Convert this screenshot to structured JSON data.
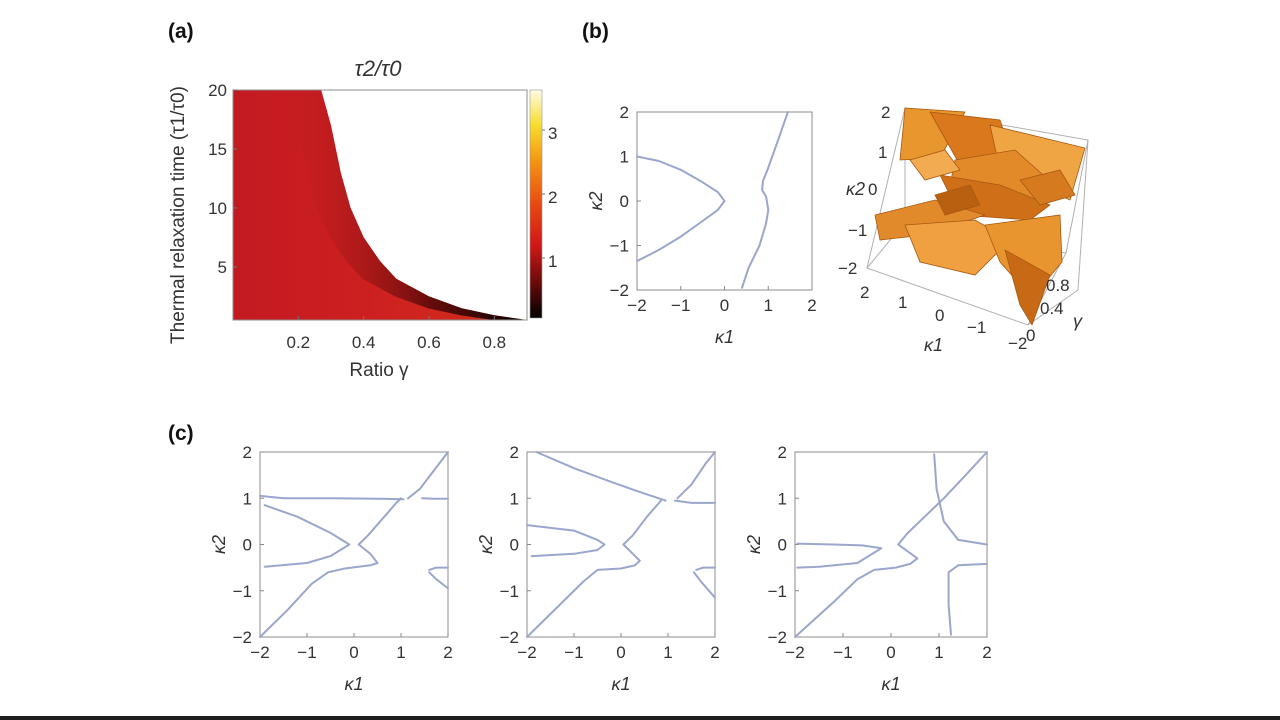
{
  "panels": {
    "a": {
      "label": "(a)",
      "title": "τ2/τ0",
      "ylabel": "Thermal relaxation time (τ1/τ0)",
      "xlabel": "Ratio γ",
      "colorbar_ticks": [
        "3",
        "2",
        "1"
      ]
    },
    "b": {
      "label": "(b)",
      "xlabel": "κ1",
      "ylabel": "κ2",
      "surface_axes": {
        "kappa2_ticks": [
          "2",
          "1",
          "0",
          "−1",
          "−2"
        ],
        "kappa1_ticks": [
          "2",
          "1",
          "0",
          "−1",
          "−2"
        ],
        "gamma_ticks": [
          "0.8",
          "0.4",
          "0"
        ],
        "kappa2_label": "κ2",
        "kappa1_label": "κ1",
        "gamma_label": "γ"
      }
    },
    "c": {
      "label": "(c)",
      "xlabel": "κ1",
      "ylabel": "κ2"
    }
  },
  "chart_data": [
    {
      "id": "a",
      "type": "heatmap",
      "title": "τ2/τ0",
      "xlabel": "Ratio γ",
      "ylabel": "Thermal relaxation time (τ1/τ0)",
      "xlim": [
        0.0,
        0.9
      ],
      "ylim": [
        0.5,
        20
      ],
      "xticks": [
        0.2,
        0.4,
        0.6,
        0.8
      ],
      "yticks": [
        5,
        10,
        15,
        20
      ],
      "colorbar": {
        "min": 0,
        "max": 3.8,
        "ticks": [
          1,
          2,
          3
        ]
      },
      "boundary_curve": [
        [
          0.27,
          20
        ],
        [
          0.3,
          17
        ],
        [
          0.33,
          13
        ],
        [
          0.36,
          10
        ],
        [
          0.4,
          7.5
        ],
        [
          0.45,
          5.5
        ],
        [
          0.5,
          4
        ],
        [
          0.6,
          2.5
        ],
        [
          0.7,
          1.5
        ],
        [
          0.8,
          0.9
        ],
        [
          0.9,
          0.5
        ]
      ]
    },
    {
      "id": "b",
      "type": "line",
      "xlabel": "κ1",
      "ylabel": "κ2",
      "xlim": [
        -2,
        2
      ],
      "ylim": [
        -2,
        2
      ],
      "xticks": [
        -2,
        -1,
        0,
        1,
        2
      ],
      "yticks": [
        -2,
        -1,
        0,
        1,
        2
      ],
      "series": [
        {
          "values": [
            [
              -2.0,
              1.0
            ],
            [
              -1.5,
              0.9
            ],
            [
              -1.0,
              0.7
            ],
            [
              -0.5,
              0.42
            ],
            [
              -0.15,
              0.2
            ],
            [
              0.0,
              0.0
            ],
            [
              -0.15,
              -0.2
            ],
            [
              -0.5,
              -0.45
            ],
            [
              -1.0,
              -0.8
            ],
            [
              -1.5,
              -1.1
            ],
            [
              -2.0,
              -1.35
            ]
          ]
        },
        {
          "values": [
            [
              1.45,
              2.0
            ],
            [
              1.2,
              1.3
            ],
            [
              1.0,
              0.75
            ],
            [
              0.88,
              0.45
            ],
            [
              0.86,
              0.25
            ],
            [
              0.95,
              0.1
            ],
            [
              1.0,
              -0.2
            ],
            [
              0.95,
              -0.5
            ],
            [
              0.8,
              -1.0
            ],
            [
              0.55,
              -1.5
            ],
            [
              0.4,
              -1.95
            ]
          ]
        }
      ]
    },
    {
      "id": "c1",
      "type": "line",
      "xlabel": "κ1",
      "ylabel": "κ2",
      "xlim": [
        -2,
        2
      ],
      "ylim": [
        -2,
        2
      ],
      "xticks": [
        -2,
        -1,
        0,
        1,
        2
      ],
      "yticks": [
        -2,
        -1,
        0,
        1,
        2
      ],
      "series": [
        {
          "values": [
            [
              -2.0,
              1.05
            ],
            [
              -1.5,
              1.0
            ],
            [
              -0.5,
              1.0
            ],
            [
              0.5,
              0.99
            ],
            [
              1.05,
              0.98
            ]
          ]
        },
        {
          "values": [
            [
              -1.9,
              0.85
            ],
            [
              -1.2,
              0.6
            ],
            [
              -0.5,
              0.25
            ],
            [
              -0.1,
              0.0
            ],
            [
              -0.5,
              -0.25
            ],
            [
              -1.0,
              -0.4
            ],
            [
              -1.9,
              -0.48
            ]
          ]
        },
        {
          "values": [
            [
              -2.0,
              -2.0
            ],
            [
              -1.4,
              -1.4
            ],
            [
              -0.9,
              -0.85
            ],
            [
              -0.55,
              -0.6
            ],
            [
              -0.2,
              -0.52
            ],
            [
              0.35,
              -0.45
            ],
            [
              0.5,
              -0.4
            ],
            [
              0.35,
              -0.2
            ],
            [
              0.1,
              0.0
            ],
            [
              0.3,
              0.2
            ],
            [
              0.6,
              0.55
            ],
            [
              0.9,
              0.9
            ],
            [
              1.0,
              1.0
            ]
          ]
        },
        {
          "values": [
            [
              1.15,
              1.0
            ],
            [
              1.4,
              1.2
            ],
            [
              1.7,
              1.6
            ],
            [
              2.0,
              2.0
            ]
          ]
        },
        {
          "values": [
            [
              1.45,
              1.0
            ],
            [
              1.7,
              0.99
            ],
            [
              2.0,
              0.99
            ]
          ]
        },
        {
          "values": [
            [
              1.6,
              -0.55
            ],
            [
              1.75,
              -0.5
            ],
            [
              2.0,
              -0.5
            ]
          ]
        },
        {
          "values": [
            [
              1.6,
              -0.6
            ],
            [
              1.75,
              -0.75
            ],
            [
              2.0,
              -0.95
            ]
          ]
        }
      ]
    },
    {
      "id": "c2",
      "type": "line",
      "xlabel": "κ1",
      "ylabel": "κ2",
      "xlim": [
        -2,
        2
      ],
      "ylim": [
        -2,
        2
      ],
      "xticks": [
        -2,
        -1,
        0,
        1,
        2
      ],
      "yticks": [
        -2,
        -1,
        0,
        1,
        2
      ],
      "series": [
        {
          "values": [
            [
              -1.8,
              2.0
            ],
            [
              -1.0,
              1.65
            ],
            [
              -0.2,
              1.35
            ],
            [
              0.5,
              1.1
            ],
            [
              0.95,
              0.95
            ]
          ]
        },
        {
          "values": [
            [
              -2.0,
              0.42
            ],
            [
              -1.0,
              0.3
            ],
            [
              -0.5,
              0.1
            ],
            [
              -0.35,
              0.0
            ],
            [
              -0.5,
              -0.12
            ],
            [
              -1.0,
              -0.2
            ],
            [
              -1.9,
              -0.25
            ]
          ]
        },
        {
          "values": [
            [
              -2.0,
              -2.0
            ],
            [
              -1.3,
              -1.3
            ],
            [
              -0.8,
              -0.8
            ],
            [
              -0.5,
              -0.55
            ],
            [
              0.0,
              -0.52
            ],
            [
              0.3,
              -0.45
            ],
            [
              0.4,
              -0.35
            ],
            [
              0.2,
              -0.15
            ],
            [
              0.05,
              0.0
            ],
            [
              0.25,
              0.2
            ],
            [
              0.55,
              0.6
            ],
            [
              0.85,
              0.95
            ]
          ]
        },
        {
          "values": [
            [
              1.2,
              1.0
            ],
            [
              1.5,
              1.3
            ],
            [
              1.8,
              1.75
            ],
            [
              2.0,
              2.0
            ]
          ]
        },
        {
          "values": [
            [
              1.15,
              0.95
            ],
            [
              1.5,
              0.9
            ],
            [
              2.0,
              0.9
            ]
          ]
        },
        {
          "values": [
            [
              1.6,
              -0.55
            ],
            [
              1.75,
              -0.5
            ],
            [
              2.0,
              -0.5
            ]
          ]
        },
        {
          "values": [
            [
              1.55,
              -0.6
            ],
            [
              1.7,
              -0.8
            ],
            [
              2.0,
              -1.15
            ]
          ]
        }
      ]
    },
    {
      "id": "c3",
      "type": "line",
      "xlabel": "κ1",
      "ylabel": "κ2",
      "xlim": [
        -2,
        2
      ],
      "ylim": [
        -2,
        2
      ],
      "xticks": [
        -2,
        -1,
        0,
        1,
        2
      ],
      "yticks": [
        -2,
        -1,
        0,
        1,
        2
      ],
      "series": [
        {
          "values": [
            [
              -1.95,
              0.02
            ],
            [
              -1.2,
              0.0
            ],
            [
              -0.6,
              -0.02
            ],
            [
              -0.2,
              -0.08
            ],
            [
              -0.7,
              -0.4
            ],
            [
              -1.5,
              -0.48
            ],
            [
              -1.95,
              -0.5
            ]
          ]
        },
        {
          "values": [
            [
              -2.0,
              -2.0
            ],
            [
              -1.2,
              -1.25
            ],
            [
              -0.7,
              -0.75
            ],
            [
              -0.35,
              -0.55
            ],
            [
              0.1,
              -0.5
            ],
            [
              0.4,
              -0.42
            ],
            [
              0.55,
              -0.3
            ],
            [
              0.35,
              -0.15
            ],
            [
              0.15,
              0.0
            ],
            [
              0.35,
              0.25
            ],
            [
              0.7,
              0.6
            ],
            [
              1.1,
              1.0
            ],
            [
              1.6,
              1.55
            ],
            [
              2.0,
              2.0
            ]
          ]
        },
        {
          "values": [
            [
              0.9,
              1.95
            ],
            [
              0.95,
              1.2
            ],
            [
              1.1,
              0.5
            ],
            [
              1.4,
              0.1
            ],
            [
              2.0,
              0.0
            ]
          ]
        },
        {
          "values": [
            [
              1.25,
              -1.95
            ],
            [
              1.2,
              -1.3
            ],
            [
              1.2,
              -0.6
            ],
            [
              1.4,
              -0.45
            ],
            [
              2.0,
              -0.42
            ]
          ]
        }
      ]
    }
  ]
}
